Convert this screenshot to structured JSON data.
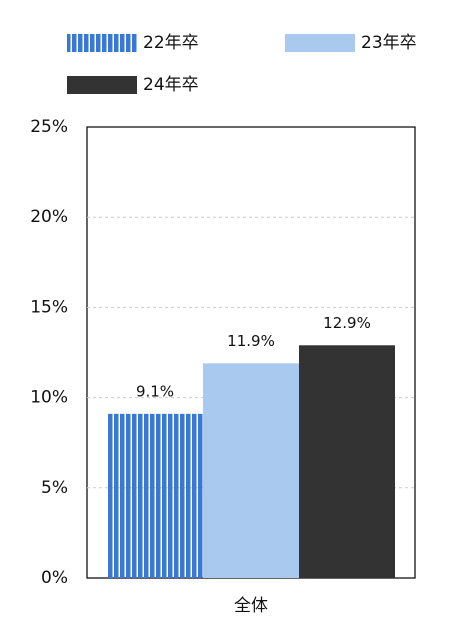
{
  "chart_data": {
    "type": "bar",
    "categories": [
      "全体"
    ],
    "series": [
      {
        "name": "22年卒",
        "color": "#3a78d4",
        "hatch": "vertical",
        "values": [
          9.1
        ],
        "value_labels": [
          "9.1%"
        ]
      },
      {
        "name": "23年卒",
        "color": "#a9c9ee",
        "values": [
          11.9
        ],
        "value_labels": [
          "11.9%"
        ]
      },
      {
        "name": "24年卒",
        "color": "#333333",
        "values": [
          12.9
        ],
        "value_labels": [
          "12.9%"
        ]
      }
    ],
    "ylim": [
      0,
      25
    ],
    "yticks": [
      {
        "value": 0,
        "label": "0%"
      },
      {
        "value": 5,
        "label": "5%"
      },
      {
        "value": 10,
        "label": "10%"
      },
      {
        "value": 15,
        "label": "15%"
      },
      {
        "value": 20,
        "label": "20%"
      },
      {
        "value": 25,
        "label": "25%"
      }
    ],
    "grid": true
  }
}
